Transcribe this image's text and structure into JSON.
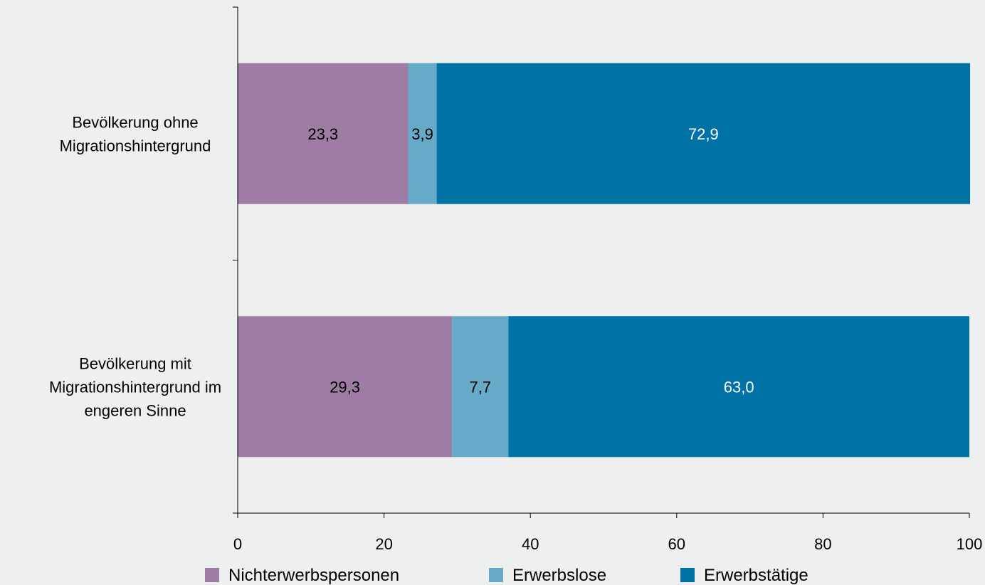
{
  "chart_data": {
    "type": "bar",
    "orientation": "horizontal",
    "stacked": true,
    "title": "",
    "xlabel": "",
    "ylabel": "",
    "xlim": [
      0,
      100
    ],
    "x_ticks": [
      "0",
      "20",
      "40",
      "60",
      "80",
      "100"
    ],
    "categories": [
      [
        "Bevölkerung ohne",
        "Migrationshintergrund"
      ],
      [
        "Bevölkerung mit",
        "Migrationshintergrund im",
        "engeren Sinne"
      ]
    ],
    "series": [
      {
        "name": "Nichterwerbspersonen",
        "color": "#9e7ca3",
        "label_color": "#000000",
        "values": [
          23.3,
          29.3
        ],
        "labels": [
          "23,3",
          "29,3"
        ]
      },
      {
        "name": "Erwerbslose",
        "color": "#66aac8",
        "label_color": "#000000",
        "values": [
          3.9,
          7.7
        ],
        "labels": [
          "3,9",
          "7,7"
        ]
      },
      {
        "name": "Erwerbstätige",
        "color": "#0072a5",
        "label_color": "#ffffff",
        "values": [
          72.9,
          63.0
        ],
        "labels": [
          "72,9",
          "63,0"
        ]
      }
    ],
    "grid": false,
    "legend_position": "bottom"
  }
}
